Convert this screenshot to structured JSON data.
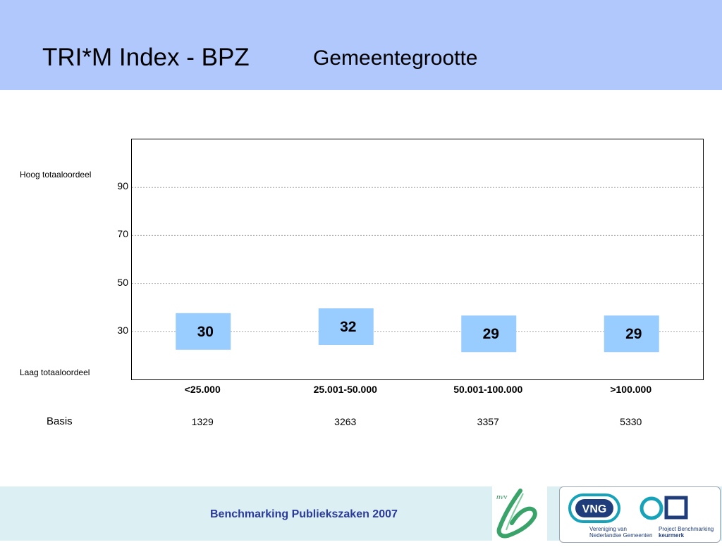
{
  "header": {
    "title": "TRI*M Index - BPZ",
    "subtitle": "Gemeentegrootte",
    "background": "#b0c8fc"
  },
  "chart_data": {
    "type": "bar",
    "categories": [
      "<25.000",
      "25.001-50.000",
      "50.001-100.000",
      ">100.000"
    ],
    "values": [
      30,
      32,
      29,
      29
    ],
    "value_labels": [
      "30",
      "32",
      "29",
      "29"
    ],
    "y_ticks": [
      "90",
      "70",
      "50",
      "30"
    ],
    "y_tick_values": [
      90,
      70,
      50,
      30
    ],
    "ylim": [
      10,
      110
    ],
    "y_top_label": "Hoog totaaloordeel",
    "y_bottom_label": "Laag totaaloordeel",
    "grid": true,
    "bar_color": "#99ccff"
  },
  "basis": {
    "label": "Basis",
    "values": [
      "1329",
      "3263",
      "3357",
      "5330"
    ]
  },
  "footer": {
    "text": "Benchmarking Publiekszaken 2007",
    "vng_label": "VNG",
    "vng_caption_1": "Vereniging van",
    "vng_caption_2": "Nederlandse Gemeenten",
    "pbk_caption_1": "Project Benchmarking",
    "pbk_caption_2": "keurmerk",
    "nvv_label": "nvv"
  }
}
